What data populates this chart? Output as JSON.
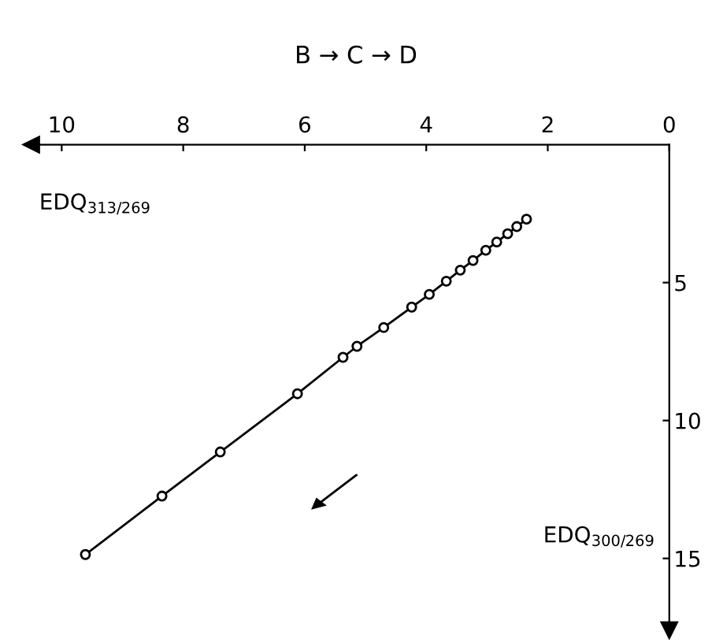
{
  "chart_data": {
    "type": "line",
    "title": "B → C → D",
    "xlabel": "EDQ$_{313/269}$",
    "ylabel": "EDQ$_{300/269}$",
    "x": [
      9.61,
      8.35,
      7.39,
      6.12,
      5.37,
      5.14,
      4.7,
      4.24,
      3.95,
      3.67,
      3.44,
      3.23,
      3.02,
      2.84,
      2.66,
      2.51,
      2.35
    ],
    "series": [
      {
        "color": "#000000",
        "values": [
          14.86,
          12.74,
          11.14,
          9.03,
          7.71,
          7.31,
          6.63,
          5.89,
          5.43,
          4.95,
          4.55,
          4.2,
          3.83,
          3.53,
          3.23,
          2.97,
          2.7
        ]
      }
    ],
    "marker": "circle",
    "line_style": "solid",
    "xlim": [
      10.5,
      0
    ],
    "xticks": [
      10,
      8,
      6,
      4,
      2,
      0
    ],
    "ylim": [
      17.6,
      0
    ],
    "yticks": [
      5,
      10,
      15
    ],
    "grid": false
  }
}
